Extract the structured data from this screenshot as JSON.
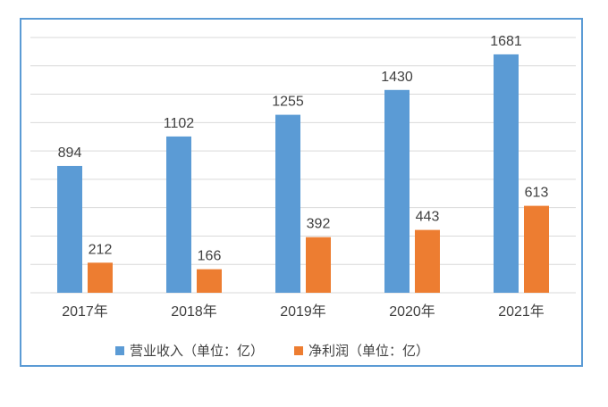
{
  "chart_data": {
    "type": "bar",
    "categories": [
      "2017年",
      "2018年",
      "2019年",
      "2020年",
      "2021年"
    ],
    "series": [
      {
        "name": "营业收入（单位：亿）",
        "values": [
          894,
          1102,
          1255,
          1430,
          1681
        ],
        "color": "#5b9bd5"
      },
      {
        "name": "净利润（单位：亿）",
        "values": [
          212,
          166,
          392,
          443,
          613
        ],
        "color": "#ed7d31"
      }
    ],
    "ylim": [
      0,
      1800
    ],
    "grid": true,
    "legend": "bottom",
    "title": "",
    "xlabel": "",
    "ylabel": ""
  },
  "colors": {
    "frame": "#5b9bd5",
    "grid": "#d9d9d9",
    "text": "#404040"
  }
}
